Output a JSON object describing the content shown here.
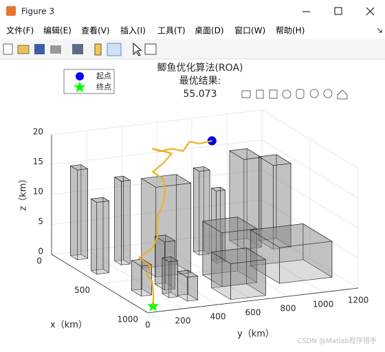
{
  "window": {
    "title": "Figure 3",
    "menu": [
      "文件(F)",
      "编辑(E)",
      "查看(V)",
      "插入(I)",
      "工具(T)",
      "桌面(D)",
      "窗口(W)",
      "帮助(H)"
    ],
    "watermark": "CSDN @Matlab程序猎手"
  },
  "chart_data": {
    "type": "line3d",
    "title": [
      "鲫鱼优化算法(ROA)",
      "最优结果:",
      "55.073"
    ],
    "xlabel": "x（km）",
    "ylabel": "y（km）",
    "zlabel": "z（km）",
    "xlim": [
      0,
      1000
    ],
    "ylim": [
      0,
      1200
    ],
    "zlim": [
      0,
      20
    ],
    "xticks": [
      0,
      500,
      1000
    ],
    "yticks": [
      0,
      200,
      400,
      600,
      800,
      1000,
      1200
    ],
    "zticks": [
      0,
      5,
      10,
      15,
      20
    ],
    "grid": true,
    "legend": "northwest",
    "series": [
      {
        "name": "起点",
        "color": "#0000ff",
        "marker": "circle",
        "x": [
          100
        ],
        "y": [
          860
        ],
        "z": [
          17
        ]
      },
      {
        "name": "终点",
        "color": "#00ff00",
        "marker": "star",
        "x": [
          1000
        ],
        "y": [
          30
        ],
        "z": [
          1
        ]
      },
      {
        "color": "#edb120",
        "marker": "line",
        "x": [
          1000,
          950,
          900,
          880,
          850,
          800,
          760,
          700,
          620,
          560,
          500,
          450,
          400,
          360,
          330,
          300,
          280,
          250,
          230,
          200,
          160,
          120,
          100
        ],
        "y": [
          30,
          60,
          80,
          60,
          100,
          60,
          160,
          220,
          260,
          300,
          360,
          400,
          420,
          380,
          460,
          520,
          420,
          480,
          560,
          640,
          700,
          780,
          860
        ],
        "z": [
          1,
          2,
          4,
          5,
          6,
          7,
          8,
          9,
          10,
          11,
          12,
          13,
          15,
          16,
          17,
          18,
          19,
          18,
          18,
          17,
          18,
          17,
          17
        ]
      }
    ]
  }
}
